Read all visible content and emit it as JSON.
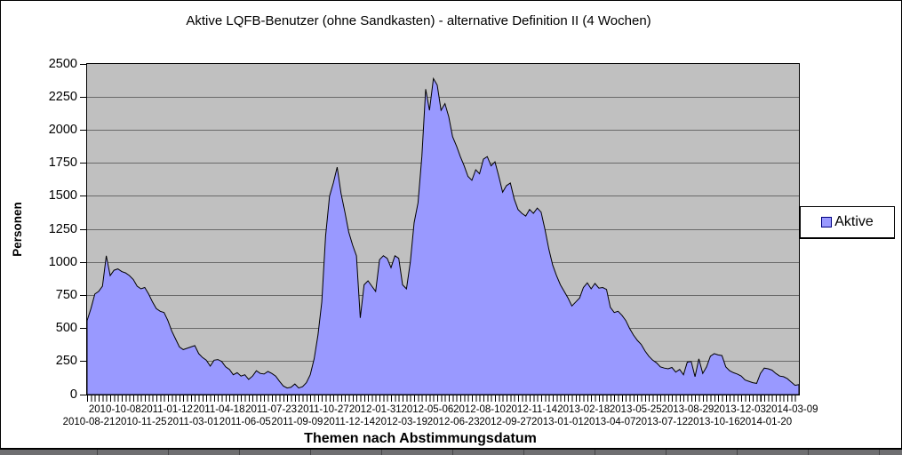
{
  "title": "Aktive LQFB-Benutzer (ohne Sandkasten) - alternative Definition II (4 Wochen)",
  "y_axis": {
    "title": "Personen"
  },
  "x_axis": {
    "title": "Themen nach Abstimmungsdatum",
    "labels": [
      "2010-08-21",
      "2010-10-08",
      "2010-11-25",
      "2011-01-12",
      "2011-03-01",
      "2011-04-18",
      "2011-06-05",
      "2011-07-23",
      "2011-09-09",
      "2011-10-27",
      "2011-12-14",
      "2012-01-31",
      "2012-03-19",
      "2012-05-06",
      "2012-06-23",
      "2012-08-10",
      "2012-09-27",
      "2012-11-14",
      "2013-01-01",
      "2013-02-18",
      "2013-04-07",
      "2013-05-25",
      "2013-07-12",
      "2013-08-29",
      "2013-10-16",
      "2013-12-03",
      "2014-01-20",
      "2014-03-09"
    ]
  },
  "legend": {
    "label": "Aktive"
  },
  "colors": {
    "series_fill": "#9999ff",
    "series_line": "#000000",
    "plot_bg": "#c0c0c0",
    "gridline": "#696969",
    "axis": "#000000",
    "swatch_border": "#000080",
    "page_bg": "#ffffff",
    "bottom_strip": "#6f6f71"
  },
  "chart_data": {
    "type": "area",
    "title": "Aktive LQFB-Benutzer (ohne Sandkasten) - alternative Definition II (4 Wochen)",
    "xlabel": "Themen nach Abstimmungsdatum",
    "ylabel": "Personen",
    "ylim": [
      0,
      2500
    ],
    "y_ticks": [
      0,
      250,
      500,
      750,
      1000,
      1250,
      1500,
      1750,
      2000,
      2250,
      2500
    ],
    "grid": "horizontal",
    "legend_position": "right",
    "x_range": [
      "2010-08-21",
      "2014-03-09"
    ],
    "x_tick_labels_upper_row": [
      "2010-10-08",
      "2011-01-12",
      "2011-04-18",
      "2011-07-23",
      "2011-10-27",
      "2012-01-31",
      "2012-05-06",
      "2012-08-10",
      "2012-11-14",
      "2013-02-18",
      "2013-05-25",
      "2013-08-29",
      "2013-12-03",
      "2014-03-09"
    ],
    "x_tick_labels_lower_row": [
      "2010-08-21",
      "2010-11-25",
      "2011-03-01",
      "2011-06-05",
      "2011-09-09",
      "2011-12-14",
      "2012-03-19",
      "2012-06-23",
      "2012-09-27",
      "2013-01-01",
      "2013-04-07",
      "2013-07-12",
      "2013-10-16",
      "2014-01-20"
    ],
    "series": [
      {
        "name": "Aktive",
        "values": [
          560,
          650,
          760,
          780,
          820,
          1050,
          900,
          940,
          950,
          930,
          920,
          900,
          870,
          820,
          800,
          810,
          760,
          700,
          650,
          630,
          620,
          560,
          480,
          420,
          360,
          340,
          350,
          360,
          370,
          310,
          280,
          260,
          215,
          260,
          265,
          250,
          210,
          190,
          150,
          165,
          140,
          150,
          115,
          140,
          180,
          160,
          155,
          175,
          160,
          140,
          100,
          65,
          50,
          55,
          80,
          50,
          60,
          90,
          150,
          270,
          450,
          700,
          1200,
          1500,
          1600,
          1720,
          1520,
          1380,
          1230,
          1130,
          1050,
          580,
          830,
          860,
          820,
          780,
          1020,
          1050,
          1030,
          960,
          1050,
          1030,
          830,
          800,
          1000,
          1300,
          1450,
          1800,
          2310,
          2150,
          2390,
          2340,
          2150,
          2200,
          2100,
          1950,
          1880,
          1800,
          1730,
          1650,
          1620,
          1700,
          1670,
          1780,
          1800,
          1730,
          1760,
          1650,
          1530,
          1580,
          1600,
          1480,
          1400,
          1370,
          1350,
          1400,
          1370,
          1410,
          1380,
          1250,
          1100,
          980,
          900,
          830,
          780,
          730,
          670,
          700,
          730,
          810,
          845,
          800,
          840,
          805,
          810,
          795,
          660,
          620,
          630,
          600,
          560,
          500,
          450,
          410,
          380,
          330,
          290,
          260,
          240,
          210,
          200,
          195,
          205,
          170,
          190,
          150,
          245,
          250,
          135,
          270,
          160,
          210,
          290,
          310,
          300,
          295,
          210,
          180,
          165,
          155,
          140,
          110,
          100,
          90,
          85,
          160,
          200,
          195,
          185,
          160,
          140,
          135,
          120,
          95,
          70,
          75
        ]
      }
    ]
  }
}
